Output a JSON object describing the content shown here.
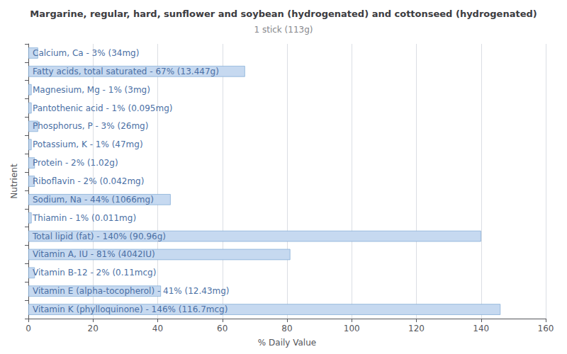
{
  "chart_data": {
    "type": "bar",
    "orientation": "horizontal",
    "title": "Margarine, regular, hard, sunflower and soybean (hydrogenated) and cottonseed (hydrogenated)",
    "subtitle": "1 stick (113g)",
    "xlabel": "% Daily Value",
    "ylabel": "Nutrient",
    "categories": [
      "Calcium, Ca - 3% (34mg)",
      "Fatty acids, total saturated - 67% (13.447g)",
      "Magnesium, Mg - 1% (3mg)",
      "Pantothenic acid - 1% (0.095mg)",
      "Phosphorus, P - 3% (26mg)",
      "Potassium, K - 1% (47mg)",
      "Protein - 2% (1.02g)",
      "Riboflavin - 2% (0.042mg)",
      "Sodium, Na - 44% (1066mg)",
      "Thiamin - 1% (0.011mg)",
      "Total lipid (fat) - 140% (90.96g)",
      "Vitamin A, IU - 81% (4042IU)",
      "Vitamin B-12 - 2% (0.11mcg)",
      "Vitamin E (alpha-tocopherol) - 41% (12.43mg)",
      "Vitamin K (phylloquinone) - 146% (116.7mcg)"
    ],
    "values": [
      3,
      67,
      1,
      1,
      3,
      1,
      2,
      2,
      44,
      1,
      140,
      81,
      2,
      41,
      146
    ],
    "color": "#c6d9f0",
    "xlim": [
      0,
      160
    ],
    "xticks": [
      0,
      20,
      40,
      60,
      80,
      100,
      120,
      140,
      160
    ],
    "grid": true,
    "tick_labels": "x"
  }
}
